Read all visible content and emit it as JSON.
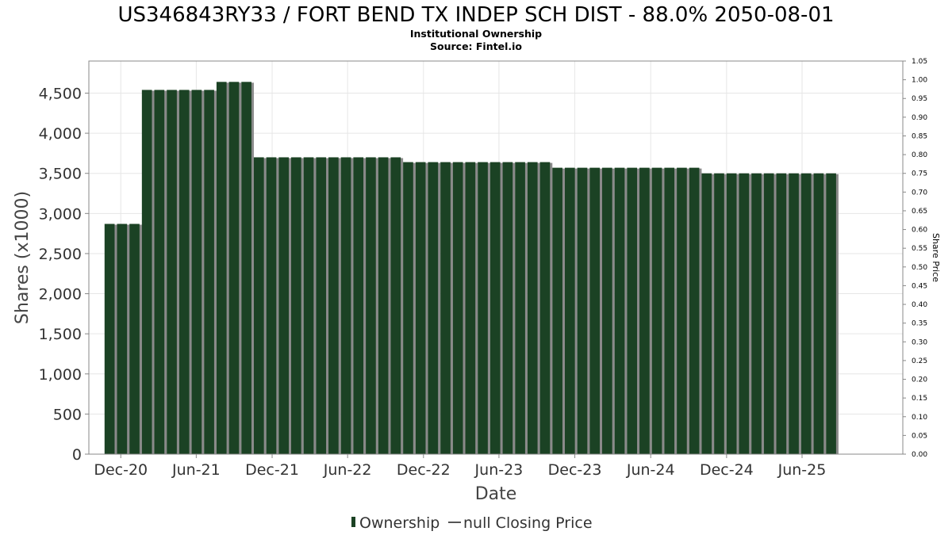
{
  "chart_data": {
    "type": "bar",
    "title": "US346843RY33 / FORT BEND TX INDEP SCH DIST - 88.0% 2050-08-01",
    "subtitle_lines": [
      "Institutional Ownership",
      "Source: Fintel.io"
    ],
    "xlabel": "Date",
    "ylabel": "Shares (x1000)",
    "ylabel_right": "Share Price",
    "ylim": [
      0,
      4900
    ],
    "yticks": [
      0,
      500,
      1000,
      1500,
      2000,
      2500,
      3000,
      3500,
      4000,
      4500
    ],
    "ylim_right": [
      0,
      1.05
    ],
    "yticks_right": [
      0.0,
      0.05,
      0.1,
      0.15,
      0.2,
      0.25,
      0.3,
      0.35,
      0.4,
      0.45,
      0.5,
      0.55,
      0.6,
      0.65,
      0.7,
      0.75,
      0.8,
      0.85,
      0.9,
      0.95,
      1.0,
      1.05
    ],
    "xlim": [
      "2020-09-15",
      "2026-01-30"
    ],
    "x_tick_labels": [
      {
        "date": "2020-12-01",
        "label": "Dec-20"
      },
      {
        "date": "2021-06-01",
        "label": "Jun-21"
      },
      {
        "date": "2021-12-01",
        "label": "Dec-21"
      },
      {
        "date": "2022-06-01",
        "label": "Jun-22"
      },
      {
        "date": "2022-12-01",
        "label": "Dec-22"
      },
      {
        "date": "2023-06-01",
        "label": "Jun-23"
      },
      {
        "date": "2023-12-01",
        "label": "Dec-23"
      },
      {
        "date": "2024-06-01",
        "label": "Jun-24"
      },
      {
        "date": "2024-12-01",
        "label": "Dec-24"
      },
      {
        "date": "2025-06-01",
        "label": "Jun-25"
      }
    ],
    "grid": true,
    "legend_position": "bottom-center",
    "series": [
      {
        "name": "Ownership",
        "color": "#1b4224",
        "shadow_color": "#8a8a8a",
        "points": [
          {
            "x": "2020-11-04",
            "y": 2870
          },
          {
            "x": "2020-12-04",
            "y": 2870
          },
          {
            "x": "2021-01-03",
            "y": 2870
          },
          {
            "x": "2021-02-02",
            "y": 4540
          },
          {
            "x": "2021-03-04",
            "y": 4540
          },
          {
            "x": "2021-04-03",
            "y": 4540
          },
          {
            "x": "2021-05-03",
            "y": 4540
          },
          {
            "x": "2021-06-02",
            "y": 4540
          },
          {
            "x": "2021-07-02",
            "y": 4540
          },
          {
            "x": "2021-08-01",
            "y": 4640
          },
          {
            "x": "2021-08-31",
            "y": 4640
          },
          {
            "x": "2021-09-30",
            "y": 4640
          },
          {
            "x": "2021-10-30",
            "y": 3700
          },
          {
            "x": "2021-11-29",
            "y": 3700
          },
          {
            "x": "2021-12-29",
            "y": 3700
          },
          {
            "x": "2022-01-28",
            "y": 3700
          },
          {
            "x": "2022-02-27",
            "y": 3700
          },
          {
            "x": "2022-03-29",
            "y": 3700
          },
          {
            "x": "2022-04-28",
            "y": 3700
          },
          {
            "x": "2022-05-28",
            "y": 3700
          },
          {
            "x": "2022-06-27",
            "y": 3700
          },
          {
            "x": "2022-07-27",
            "y": 3700
          },
          {
            "x": "2022-08-26",
            "y": 3700
          },
          {
            "x": "2022-09-25",
            "y": 3700
          },
          {
            "x": "2022-10-25",
            "y": 3640
          },
          {
            "x": "2022-11-24",
            "y": 3640
          },
          {
            "x": "2022-12-24",
            "y": 3640
          },
          {
            "x": "2023-01-23",
            "y": 3640
          },
          {
            "x": "2023-02-22",
            "y": 3640
          },
          {
            "x": "2023-03-24",
            "y": 3640
          },
          {
            "x": "2023-04-23",
            "y": 3640
          },
          {
            "x": "2023-05-23",
            "y": 3640
          },
          {
            "x": "2023-06-22",
            "y": 3640
          },
          {
            "x": "2023-07-22",
            "y": 3640
          },
          {
            "x": "2023-08-21",
            "y": 3640
          },
          {
            "x": "2023-09-20",
            "y": 3640
          },
          {
            "x": "2023-10-20",
            "y": 3570
          },
          {
            "x": "2023-11-19",
            "y": 3570
          },
          {
            "x": "2023-12-19",
            "y": 3570
          },
          {
            "x": "2024-01-18",
            "y": 3570
          },
          {
            "x": "2024-02-17",
            "y": 3570
          },
          {
            "x": "2024-03-18",
            "y": 3570
          },
          {
            "x": "2024-04-17",
            "y": 3570
          },
          {
            "x": "2024-05-17",
            "y": 3570
          },
          {
            "x": "2024-06-16",
            "y": 3570
          },
          {
            "x": "2024-07-16",
            "y": 3570
          },
          {
            "x": "2024-08-15",
            "y": 3570
          },
          {
            "x": "2024-09-14",
            "y": 3570
          },
          {
            "x": "2024-10-14",
            "y": 3500
          },
          {
            "x": "2024-11-13",
            "y": 3500
          },
          {
            "x": "2024-12-13",
            "y": 3500
          },
          {
            "x": "2025-01-12",
            "y": 3500
          },
          {
            "x": "2025-02-11",
            "y": 3500
          },
          {
            "x": "2025-03-13",
            "y": 3500
          },
          {
            "x": "2025-04-12",
            "y": 3500
          },
          {
            "x": "2025-05-12",
            "y": 3500
          },
          {
            "x": "2025-06-11",
            "y": 3500
          },
          {
            "x": "2025-07-11",
            "y": 3500
          },
          {
            "x": "2025-08-10",
            "y": 3500
          }
        ]
      },
      {
        "name": "null Closing Price",
        "color": "#555555",
        "points": []
      }
    ]
  }
}
